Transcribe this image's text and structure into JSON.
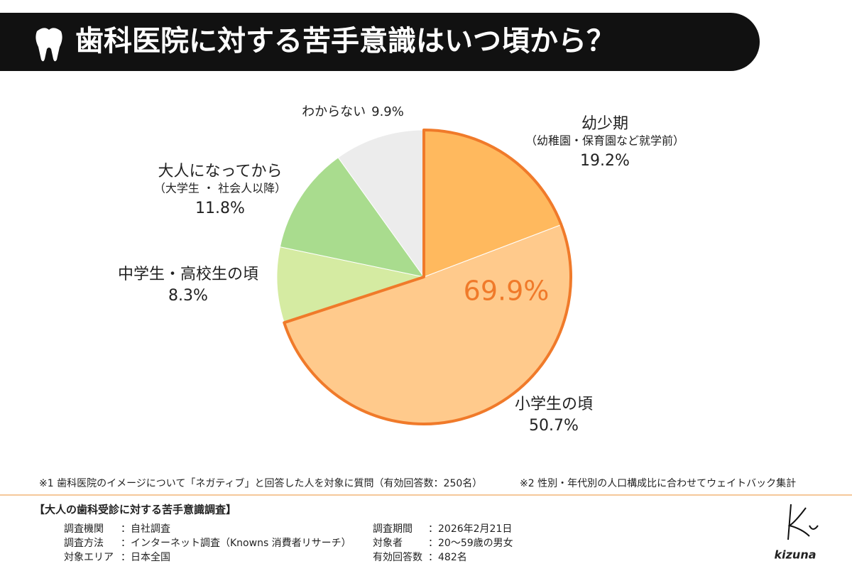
{
  "header": {
    "title": "歯科医院に対する苦手意識はいつ頃から？"
  },
  "chart_data": {
    "type": "pie",
    "categories": [
      "幼少期",
      "小学生の頃",
      "中学生・高校生の頃",
      "大人になってから",
      "わからない"
    ],
    "subtitles": [
      "（幼稚園・保育園など就学前）",
      null,
      null,
      "（大学生 ・ 社会人以降）",
      null
    ],
    "values": [
      19.2,
      50.7,
      8.3,
      11.8,
      9.9
    ],
    "value_labels": [
      "19.2%",
      "50.7%",
      "8.3%",
      "11.8%",
      "9.9%"
    ],
    "colors": [
      "#ffb95e",
      "#ffca8c",
      "#d5eba2",
      "#a9dc8e",
      "#ececec"
    ],
    "highlight": {
      "value": 69.9,
      "label": "69.9%",
      "color": "#f07a2a"
    }
  },
  "notes": [
    "※1 歯科医院のイメージについて「ネガティブ」と回答した人を対象に質問（有効回答数：250名）",
    "※2 性別・年代別の人口構成比に合わせてウェイトバック集計"
  ],
  "survey": {
    "title": "【大人の歯科受診に対する苦手意識調査】",
    "items": [
      {
        "label": "調査機関",
        "value": "：自社調査"
      },
      {
        "label": "調査方法",
        "value": "：インターネット調査（Knowns 消費者リサーチ）"
      },
      {
        "label": "対象エリア",
        "value": "：日本全国"
      },
      {
        "label": "調査期間",
        "value": "：2026年2月21日"
      },
      {
        "label": "対象者",
        "value": "：20～59歳の男女"
      },
      {
        "label": "有効回答数",
        "value": "：482名"
      }
    ]
  },
  "logo": "kizuna"
}
